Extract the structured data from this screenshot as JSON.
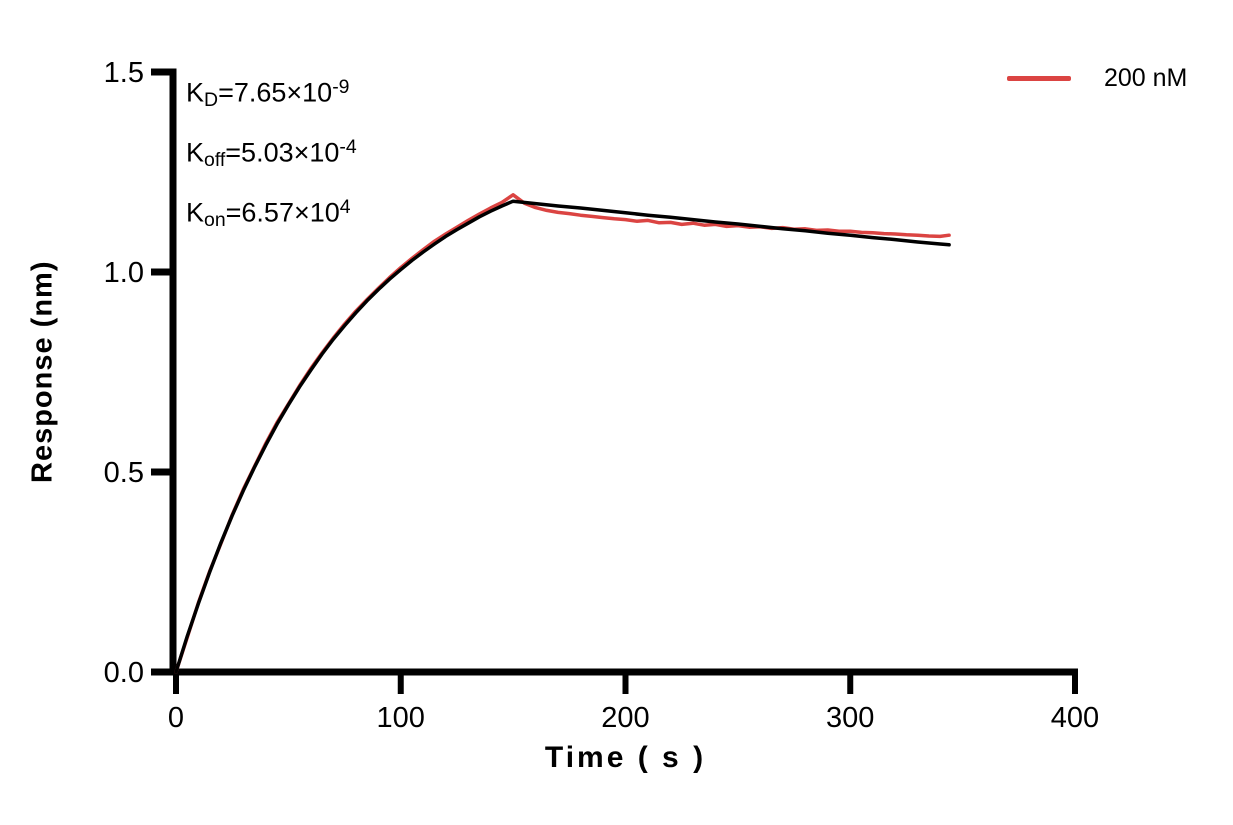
{
  "kinetics": {
    "kd": {
      "base": "K",
      "sub": "D",
      "value": "=7.65×10",
      "exponent": "-9"
    },
    "koff": {
      "base": "K",
      "sub": "off",
      "value": "=5.03×10",
      "exponent": "-4"
    },
    "kon": {
      "base": "K",
      "sub": "on",
      "value": "=6.57×10",
      "exponent": "4"
    }
  },
  "chart_data": {
    "type": "line",
    "title": "",
    "xlabel": "Time ( s )",
    "ylabel": "Response (nm)",
    "xlim": [
      0,
      400
    ],
    "ylim": [
      0,
      1.5
    ],
    "grid": false,
    "background": "#FFFFFF",
    "axis_color": "#000000",
    "xticks": {
      "values": [
        0,
        100,
        200,
        300,
        400
      ],
      "labels": [
        "0",
        "100",
        "200",
        "300",
        "400"
      ]
    },
    "yticks": {
      "values": [
        0,
        0.5,
        1.0,
        1.5
      ],
      "labels": [
        "0.0",
        "0.5",
        "1.0",
        "1.5"
      ]
    },
    "legend": {
      "position": "top-right",
      "entries": [
        {
          "label": "200 nM",
          "color": "#DB4442"
        }
      ]
    },
    "series": [
      {
        "name": "200 nM measured",
        "color": "#DB4442",
        "line_width": 3.5,
        "x": [
          0,
          5,
          10,
          15,
          20,
          25,
          30,
          35,
          40,
          45,
          50,
          55,
          60,
          65,
          70,
          75,
          80,
          85,
          90,
          95,
          100,
          105,
          110,
          115,
          120,
          125,
          130,
          135,
          140,
          145,
          150,
          155,
          160,
          165,
          170,
          175,
          180,
          185,
          190,
          195,
          200,
          205,
          210,
          215,
          220,
          225,
          230,
          235,
          240,
          245,
          250,
          255,
          260,
          265,
          270,
          275,
          280,
          285,
          290,
          295,
          300,
          305,
          310,
          315,
          320,
          325,
          330,
          335,
          340,
          344
        ],
        "y": [
          0,
          0.086,
          0.174,
          0.252,
          0.321,
          0.393,
          0.457,
          0.515,
          0.572,
          0.624,
          0.67,
          0.716,
          0.759,
          0.798,
          0.835,
          0.87,
          0.902,
          0.931,
          0.959,
          0.986,
          1.011,
          1.034,
          1.056,
          1.077,
          1.095,
          1.112,
          1.129,
          1.145,
          1.16,
          1.174,
          1.193,
          1.172,
          1.161,
          1.154,
          1.149,
          1.146,
          1.142,
          1.139,
          1.136,
          1.133,
          1.131,
          1.127,
          1.129,
          1.123,
          1.124,
          1.119,
          1.122,
          1.117,
          1.119,
          1.114,
          1.116,
          1.112,
          1.113,
          1.109,
          1.111,
          1.107,
          1.108,
          1.104,
          1.105,
          1.102,
          1.102,
          1.099,
          1.098,
          1.096,
          1.095,
          1.093,
          1.092,
          1.09,
          1.089,
          1.092
        ]
      },
      {
        "name": "fit",
        "color": "#000000",
        "line_width": 3.5,
        "x": [
          0,
          5,
          10,
          15,
          20,
          25,
          30,
          35,
          40,
          45,
          50,
          55,
          60,
          65,
          70,
          75,
          80,
          85,
          90,
          95,
          100,
          105,
          110,
          115,
          120,
          125,
          130,
          135,
          140,
          145,
          150,
          160,
          170,
          180,
          190,
          200,
          210,
          220,
          230,
          240,
          250,
          260,
          270,
          280,
          290,
          300,
          310,
          320,
          330,
          340,
          344
        ],
        "y": [
          0,
          0.089,
          0.172,
          0.25,
          0.323,
          0.391,
          0.454,
          0.513,
          0.568,
          0.62,
          0.668,
          0.713,
          0.755,
          0.795,
          0.832,
          0.866,
          0.898,
          0.928,
          0.956,
          0.982,
          1.006,
          1.029,
          1.05,
          1.07,
          1.089,
          1.106,
          1.122,
          1.138,
          1.152,
          1.165,
          1.177,
          1.171,
          1.165,
          1.16,
          1.154,
          1.148,
          1.142,
          1.137,
          1.131,
          1.125,
          1.12,
          1.114,
          1.108,
          1.103,
          1.097,
          1.092,
          1.086,
          1.081,
          1.075,
          1.07,
          1.068
        ]
      }
    ]
  }
}
